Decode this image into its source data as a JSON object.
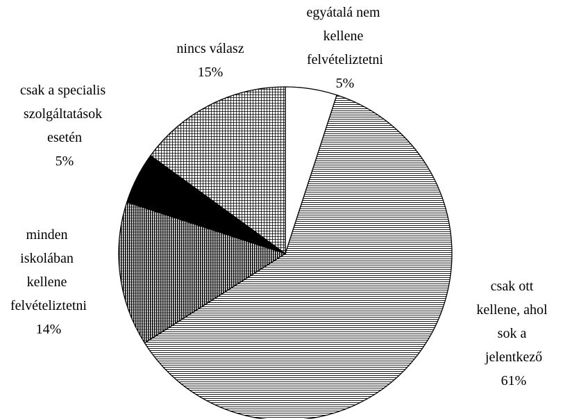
{
  "chart_data": {
    "type": "pie",
    "categories": [
      "egyátalá nem kellene felvételiztetni",
      "csak ott kellene, ahol sok a jelentkező",
      "minden iskolában kellene felvételiztetni",
      "csak a specialis szolgáltatások esetén",
      "nincs válasz"
    ],
    "values": [
      5,
      61,
      14,
      5,
      15
    ],
    "value_labels": [
      "5%",
      "61%",
      "14%",
      "5%",
      "15%"
    ]
  }
}
